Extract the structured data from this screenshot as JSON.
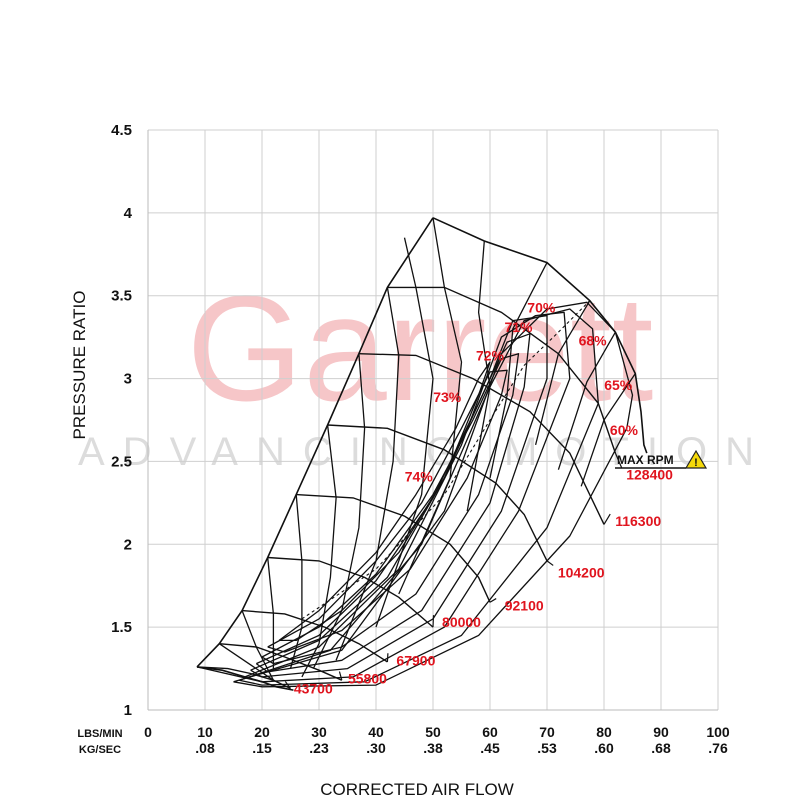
{
  "watermark": {
    "brand": "Garrett",
    "tagline": "ADVANCING MOTION"
  },
  "chart_data": {
    "type": "line",
    "title": "",
    "xlabel": "CORRECTED AIR FLOW",
    "ylabel": "PRESSURE RATIO",
    "xlim": [
      0,
      100
    ],
    "ylim": [
      1,
      4.5
    ],
    "grid": true,
    "x_ticks": [
      0,
      10,
      20,
      30,
      40,
      50,
      60,
      70,
      80,
      90,
      100
    ],
    "x_ticks_secondary": [
      "",
      ".08",
      ".15",
      ".23",
      ".30",
      ".38",
      ".45",
      ".53",
      ".60",
      ".68",
      ".76"
    ],
    "y_ticks": [
      "1",
      "1.5",
      "2",
      "2.5",
      "3",
      "3.5",
      "4",
      "4.5"
    ],
    "y_tick_values": [
      1,
      1.5,
      2,
      2.5,
      3,
      3.5,
      4,
      4.5
    ],
    "x_unit_primary": "LBS/MIN",
    "x_unit_secondary": "KG/SEC",
    "max_rpm_label": "MAX RPM",
    "surge_line": [
      [
        8.6,
        1.26
      ],
      [
        12.5,
        1.4
      ],
      [
        16.5,
        1.6
      ],
      [
        21,
        1.92
      ],
      [
        26,
        2.3
      ],
      [
        31.5,
        2.72
      ],
      [
        37,
        3.15
      ],
      [
        42,
        3.55
      ],
      [
        50,
        3.97
      ]
    ],
    "choke_boundary": [
      [
        50,
        3.97
      ],
      [
        59,
        3.83
      ],
      [
        70,
        3.7
      ],
      [
        77.5,
        3.47
      ],
      [
        82,
        3.28
      ],
      [
        85.5,
        3.03
      ],
      [
        86.5,
        2.8
      ],
      [
        87,
        2.6
      ],
      [
        87.5,
        2.55
      ]
    ],
    "bottom_boundary": [
      [
        8.6,
        1.26
      ],
      [
        13,
        1.24
      ],
      [
        17,
        1.2
      ],
      [
        20,
        1.17
      ],
      [
        22.5,
        1.14
      ],
      [
        25.5,
        1.12
      ]
    ],
    "speed_lines": [
      {
        "rpm": "43700",
        "points": [
          [
            8.6,
            1.26
          ],
          [
            14,
            1.25
          ],
          [
            18,
            1.22
          ],
          [
            22,
            1.18
          ],
          [
            25,
            1.13
          ]
        ],
        "label_at": [
          29,
          1.1
        ]
      },
      {
        "rpm": "55800",
        "points": [
          [
            12.5,
            1.4
          ],
          [
            19,
            1.38
          ],
          [
            24,
            1.32
          ],
          [
            30,
            1.24
          ],
          [
            34,
            1.18
          ]
        ],
        "label_at": [
          38.5,
          1.16
        ]
      },
      {
        "rpm": "67900",
        "points": [
          [
            16.5,
            1.6
          ],
          [
            24,
            1.58
          ],
          [
            31,
            1.5
          ],
          [
            37,
            1.4
          ],
          [
            42,
            1.29
          ]
        ],
        "label_at": [
          47,
          1.27
        ]
      },
      {
        "rpm": "80000",
        "points": [
          [
            21,
            1.92
          ],
          [
            30,
            1.9
          ],
          [
            38,
            1.8
          ],
          [
            44,
            1.68
          ],
          [
            50,
            1.5
          ]
        ],
        "label_at": [
          55,
          1.5
        ]
      },
      {
        "rpm": "92100",
        "points": [
          [
            26,
            2.3
          ],
          [
            36,
            2.28
          ],
          [
            45,
            2.17
          ],
          [
            53,
            2.0
          ],
          [
            58,
            1.8
          ],
          [
            60,
            1.65
          ]
        ],
        "label_at": [
          66,
          1.6
        ]
      },
      {
        "rpm": "104200",
        "points": [
          [
            31.5,
            2.72
          ],
          [
            42,
            2.7
          ],
          [
            52,
            2.57
          ],
          [
            61,
            2.37
          ],
          [
            66,
            2.18
          ],
          [
            70,
            1.9
          ]
        ],
        "label_at": [
          76,
          1.8
        ]
      },
      {
        "rpm": "116300",
        "points": [
          [
            37,
            3.15
          ],
          [
            47,
            3.14
          ],
          [
            57,
            3.0
          ],
          [
            67,
            2.8
          ],
          [
            74,
            2.55
          ],
          [
            80,
            2.12
          ]
        ],
        "label_at": [
          86,
          2.11
        ]
      },
      {
        "rpm": "128400",
        "points": [
          [
            42,
            3.55
          ],
          [
            52,
            3.55
          ],
          [
            62,
            3.4
          ],
          [
            72,
            3.15
          ],
          [
            79,
            2.85
          ],
          [
            82,
            2.55
          ]
        ],
        "label_at": [
          88,
          2.39
        ]
      }
    ],
    "constant_flow_lines": [
      [
        [
          8.6,
          1.26
        ],
        [
          20,
          1.17
        ]
      ],
      [
        [
          12.5,
          1.4
        ],
        [
          22,
          1.18
        ]
      ],
      [
        [
          16.5,
          1.6
        ],
        [
          19,
          1.38
        ],
        [
          22,
          1.18
        ]
      ],
      [
        [
          21,
          1.92
        ],
        [
          22,
          1.58
        ],
        [
          22,
          1.25
        ]
      ],
      [
        [
          26,
          2.3
        ],
        [
          27,
          1.9
        ],
        [
          27,
          1.5
        ],
        [
          25,
          1.25
        ]
      ],
      [
        [
          31.5,
          2.72
        ],
        [
          33,
          2.28
        ],
        [
          32,
          1.8
        ],
        [
          30,
          1.4
        ],
        [
          27,
          1.2
        ]
      ],
      [
        [
          37,
          3.15
        ],
        [
          38,
          2.7
        ],
        [
          37,
          2.1
        ],
        [
          34,
          1.6
        ],
        [
          29,
          1.25
        ]
      ],
      [
        [
          42,
          3.55
        ],
        [
          44,
          3.14
        ],
        [
          43,
          2.5
        ],
        [
          40,
          1.9
        ],
        [
          33,
          1.3
        ]
      ],
      [
        [
          45,
          3.85
        ],
        [
          47,
          3.55
        ],
        [
          50,
          3.0
        ],
        [
          48,
          2.3
        ],
        [
          40,
          1.5
        ]
      ],
      [
        [
          50,
          3.97
        ],
        [
          52,
          3.55
        ],
        [
          55,
          3.1
        ],
        [
          53,
          2.4
        ],
        [
          44,
          1.7
        ]
      ],
      [
        [
          59,
          3.83
        ],
        [
          58,
          3.4
        ],
        [
          60,
          2.95
        ],
        [
          56,
          2.2
        ]
      ],
      [
        [
          70,
          3.7
        ],
        [
          64,
          3.3
        ],
        [
          63,
          2.9
        ],
        [
          60,
          2.4
        ]
      ],
      [
        [
          77.5,
          3.47
        ],
        [
          72,
          3.15
        ],
        [
          68,
          2.6
        ]
      ],
      [
        [
          82,
          3.28
        ],
        [
          77,
          2.98
        ],
        [
          72,
          2.45
        ]
      ],
      [
        [
          85.5,
          3.03
        ],
        [
          80,
          2.75
        ],
        [
          76,
          2.35
        ]
      ]
    ],
    "efficiency_islands": [
      {
        "label": "74%",
        "points": [
          [
            23,
            1.42
          ],
          [
            30,
            1.6
          ],
          [
            40,
            1.95
          ],
          [
            47,
            2.3
          ],
          [
            54,
            2.7
          ],
          [
            58,
            3.0
          ],
          [
            60,
            3.1
          ],
          [
            58,
            2.9
          ],
          [
            52,
            2.4
          ],
          [
            44,
            1.95
          ],
          [
            34,
            1.6
          ],
          [
            26,
            1.42
          ],
          [
            23,
            1.42
          ]
        ],
        "label_at": [
          47.5,
          2.38
        ]
      },
      {
        "label": "73%",
        "points": [
          [
            21,
            1.38
          ],
          [
            30,
            1.55
          ],
          [
            40,
            1.9
          ],
          [
            48,
            2.25
          ],
          [
            55,
            2.7
          ],
          [
            60,
            3.04
          ],
          [
            63,
            3.05
          ],
          [
            62,
            2.9
          ],
          [
            56,
            2.4
          ],
          [
            46,
            1.85
          ],
          [
            34,
            1.48
          ],
          [
            24,
            1.35
          ],
          [
            21,
            1.38
          ]
        ],
        "label_at": [
          52.5,
          2.86
        ]
      },
      {
        "label": "72%",
        "points": [
          [
            20,
            1.32
          ],
          [
            30,
            1.5
          ],
          [
            40,
            1.82
          ],
          [
            50,
            2.3
          ],
          [
            57,
            2.75
          ],
          [
            62,
            3.12
          ],
          [
            65,
            3.15
          ],
          [
            64,
            2.9
          ],
          [
            58,
            2.3
          ],
          [
            47,
            1.7
          ],
          [
            34,
            1.38
          ],
          [
            22,
            1.28
          ],
          [
            20,
            1.32
          ]
        ],
        "label_at": [
          60,
          3.11
        ]
      },
      {
        "label": "71%",
        "points": [
          [
            19,
            1.28
          ],
          [
            30,
            1.45
          ],
          [
            40,
            1.78
          ],
          [
            50,
            2.28
          ],
          [
            58,
            2.85
          ],
          [
            63,
            3.22
          ],
          [
            67,
            3.27
          ],
          [
            66,
            2.95
          ],
          [
            60,
            2.25
          ],
          [
            48,
            1.6
          ],
          [
            34,
            1.3
          ],
          [
            21,
            1.23
          ],
          [
            19,
            1.28
          ]
        ],
        "label_at": [
          65,
          3.28
        ]
      },
      {
        "label": "70%",
        "points": [
          [
            18,
            1.24
          ],
          [
            30,
            1.42
          ],
          [
            42,
            1.8
          ],
          [
            52,
            2.4
          ],
          [
            60,
            3.0
          ],
          [
            64,
            3.35
          ],
          [
            70,
            3.38
          ],
          [
            70,
            3.0
          ],
          [
            62,
            2.2
          ],
          [
            50,
            1.55
          ],
          [
            35,
            1.25
          ],
          [
            20,
            1.2
          ],
          [
            18,
            1.24
          ]
        ],
        "label_at": [
          69,
          3.4
        ]
      },
      {
        "label": "68%",
        "points": [
          [
            17,
            1.2
          ],
          [
            30,
            1.38
          ],
          [
            44,
            1.85
          ],
          [
            55,
            2.6
          ],
          [
            62,
            3.25
          ],
          [
            68,
            3.38
          ],
          [
            73,
            3.4
          ],
          [
            74,
            3.0
          ],
          [
            65,
            2.2
          ],
          [
            52,
            1.5
          ],
          [
            36,
            1.2
          ],
          [
            20,
            1.17
          ],
          [
            17,
            1.2
          ]
        ],
        "label_at": [
          78,
          3.2
        ]
      },
      {
        "label": "65%",
        "points": [
          [
            16,
            1.18
          ],
          [
            32,
            1.36
          ],
          [
            48,
            2.0
          ],
          [
            60,
            2.95
          ],
          [
            66,
            3.35
          ],
          [
            74,
            3.42
          ],
          [
            78,
            3.3
          ],
          [
            79,
            2.85
          ],
          [
            70,
            2.1
          ],
          [
            55,
            1.45
          ],
          [
            38,
            1.17
          ],
          [
            20,
            1.15
          ],
          [
            16,
            1.18
          ]
        ],
        "label_at": [
          82.5,
          2.93
        ]
      },
      {
        "label": "60%",
        "points": [
          [
            15,
            1.17
          ],
          [
            34,
            1.36
          ],
          [
            52,
            2.2
          ],
          [
            62,
            3.15
          ],
          [
            70,
            3.42
          ],
          [
            77,
            3.46
          ],
          [
            82,
            3.28
          ],
          [
            85,
            2.9
          ],
          [
            84,
            2.7
          ],
          [
            74,
            2.05
          ],
          [
            58,
            1.45
          ],
          [
            40,
            1.15
          ],
          [
            20,
            1.14
          ],
          [
            15,
            1.17
          ]
        ],
        "label_at": [
          83.5,
          2.66
        ]
      }
    ],
    "choke_dashed_line": [
      [
        27,
        1.55
      ],
      [
        40,
        1.85
      ],
      [
        52,
        2.3
      ],
      [
        60,
        2.75
      ],
      [
        66,
        3.08
      ],
      [
        72,
        3.28
      ],
      [
        77.5,
        3.47
      ]
    ],
    "annotations": [
      "MAX RPM"
    ]
  }
}
